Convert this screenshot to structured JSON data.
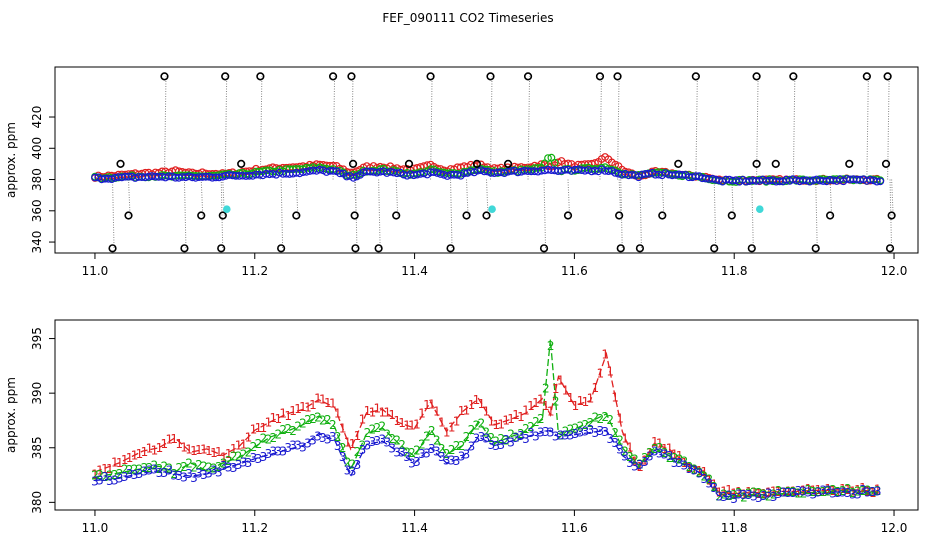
{
  "title": "FEF_090111  CO2 Timeseries",
  "chart_data": [
    {
      "type": "scatter",
      "panel": "top",
      "ylabel": "approx. ppm",
      "xlim": [
        10.95,
        12.03
      ],
      "ylim": [
        333,
        452
      ],
      "xticks": [
        11.0,
        11.2,
        11.4,
        11.6,
        11.8,
        12.0
      ],
      "xtick_labels": [
        "11.0",
        "11.2",
        "11.4",
        "11.6",
        "11.8",
        "12.0"
      ],
      "yticks": [
        340,
        360,
        380,
        400,
        420
      ],
      "ytick_labels": [
        "340",
        "360",
        "380",
        "400",
        "420"
      ],
      "outlier_colors": {
        "black": "#000000",
        "cyan": "#40d8d8",
        "dotted_line": "#888888"
      },
      "outliers_high": [
        11.087,
        11.163,
        11.207,
        11.298,
        11.321,
        11.42,
        11.495,
        11.542,
        11.632,
        11.654,
        11.752,
        11.828,
        11.874,
        11.966,
        11.992
      ],
      "outliers_low": [
        11.022,
        11.112,
        11.158,
        11.233,
        11.326,
        11.355,
        11.445,
        11.562,
        11.658,
        11.682,
        11.775,
        11.822,
        11.902,
        11.995
      ],
      "outliers_mid": [
        {
          "x": 11.042,
          "y": 357
        },
        {
          "x": 11.133,
          "y": 357
        },
        {
          "x": 11.16,
          "y": 357
        },
        {
          "x": 11.252,
          "y": 357
        },
        {
          "x": 11.325,
          "y": 357
        },
        {
          "x": 11.377,
          "y": 357
        },
        {
          "x": 11.465,
          "y": 357
        },
        {
          "x": 11.49,
          "y": 357
        },
        {
          "x": 11.592,
          "y": 357
        },
        {
          "x": 11.656,
          "y": 357
        },
        {
          "x": 11.71,
          "y": 357
        },
        {
          "x": 11.797,
          "y": 357
        },
        {
          "x": 11.92,
          "y": 357
        },
        {
          "x": 11.997,
          "y": 357
        }
      ],
      "outliers_upper_mid": [
        {
          "x": 11.032,
          "y": 390
        },
        {
          "x": 11.183,
          "y": 390
        },
        {
          "x": 11.323,
          "y": 390
        },
        {
          "x": 11.393,
          "y": 390
        },
        {
          "x": 11.478,
          "y": 390
        },
        {
          "x": 11.517,
          "y": 390
        },
        {
          "x": 11.73,
          "y": 390
        },
        {
          "x": 11.828,
          "y": 390
        },
        {
          "x": 11.852,
          "y": 390
        },
        {
          "x": 11.944,
          "y": 390
        },
        {
          "x": 11.99,
          "y": 390
        }
      ],
      "outliers_cyan": [
        {
          "x": 11.165,
          "y": 361
        },
        {
          "x": 11.497,
          "y": 361
        },
        {
          "x": 11.832,
          "y": 361
        }
      ],
      "series": [
        {
          "name": "1",
          "color": "#e02020"
        },
        {
          "name": "2",
          "color": "#10b010"
        },
        {
          "name": "3",
          "color": "#1818d0"
        }
      ]
    },
    {
      "type": "line",
      "panel": "bottom",
      "ylabel": "approx. ppm",
      "xlim": [
        10.95,
        12.03
      ],
      "ylim": [
        379.3,
        396.7
      ],
      "xticks": [
        11.0,
        11.2,
        11.4,
        11.6,
        11.8,
        12.0
      ],
      "xtick_labels": [
        "11.0",
        "11.2",
        "11.4",
        "11.6",
        "11.8",
        "12.0"
      ],
      "yticks": [
        380,
        385,
        390,
        395
      ],
      "ytick_labels": [
        "380",
        "385",
        "390",
        "395"
      ],
      "x": [
        11.0,
        11.03,
        11.06,
        11.08,
        11.1,
        11.12,
        11.14,
        11.16,
        11.18,
        11.2,
        11.22,
        11.24,
        11.26,
        11.28,
        11.3,
        11.32,
        11.34,
        11.36,
        11.38,
        11.4,
        11.42,
        11.44,
        11.46,
        11.48,
        11.5,
        11.52,
        11.54,
        11.56,
        11.57,
        11.58,
        11.6,
        11.62,
        11.64,
        11.66,
        11.68,
        11.7,
        11.72,
        11.74,
        11.76,
        11.78,
        11.8,
        11.82,
        11.84,
        11.86,
        11.88,
        11.9,
        11.92,
        11.94,
        11.96,
        11.98
      ],
      "series": [
        {
          "name": "1",
          "color": "#e02020",
          "values": [
            382.8,
            383.6,
            384.7,
            385.0,
            385.9,
            384.6,
            384.9,
            384.3,
            385.1,
            386.6,
            387.4,
            388.1,
            388.5,
            389.4,
            388.7,
            384.9,
            388.2,
            388.5,
            387.3,
            386.8,
            389.2,
            386.5,
            388.3,
            389.5,
            387.1,
            387.6,
            388.2,
            389.5,
            388.0,
            391.5,
            388.9,
            389.3,
            393.6,
            386.5,
            383.0,
            385.4,
            384.8,
            383.5,
            383.0,
            381.0,
            380.8,
            380.9,
            380.9,
            381.0,
            381.0,
            381.1,
            381.1,
            381.2,
            381.1,
            381.0
          ]
        },
        {
          "name": "2",
          "color": "#10b010",
          "values": [
            382.3,
            382.7,
            383.1,
            383.3,
            382.8,
            383.6,
            382.9,
            383.6,
            384.1,
            385.1,
            386.0,
            386.5,
            387.1,
            387.9,
            386.9,
            383.0,
            386.3,
            386.8,
            385.4,
            384.2,
            386.7,
            384.4,
            385.2,
            387.4,
            385.4,
            386.0,
            386.5,
            387.6,
            394.9,
            386.3,
            386.7,
            387.4,
            388.1,
            385.0,
            383.4,
            385.0,
            384.2,
            383.6,
            382.8,
            380.8,
            380.6,
            380.7,
            380.7,
            380.8,
            380.9,
            380.9,
            381.0,
            381.1,
            381.0,
            380.9
          ]
        },
        {
          "name": "3",
          "color": "#1818d0",
          "values": [
            382.0,
            382.2,
            382.7,
            382.9,
            382.6,
            382.4,
            382.6,
            383.1,
            383.5,
            384.0,
            384.4,
            384.8,
            385.2,
            386.3,
            385.7,
            382.4,
            385.3,
            385.6,
            384.6,
            383.6,
            385.0,
            383.6,
            384.1,
            386.0,
            385.2,
            385.6,
            386.0,
            386.4,
            386.6,
            386.0,
            386.2,
            386.4,
            386.6,
            384.3,
            383.2,
            384.6,
            384.0,
            383.4,
            382.6,
            380.6,
            380.5,
            380.6,
            380.6,
            380.7,
            380.8,
            380.8,
            380.9,
            381.0,
            380.9,
            380.8
          ]
        }
      ]
    }
  ]
}
